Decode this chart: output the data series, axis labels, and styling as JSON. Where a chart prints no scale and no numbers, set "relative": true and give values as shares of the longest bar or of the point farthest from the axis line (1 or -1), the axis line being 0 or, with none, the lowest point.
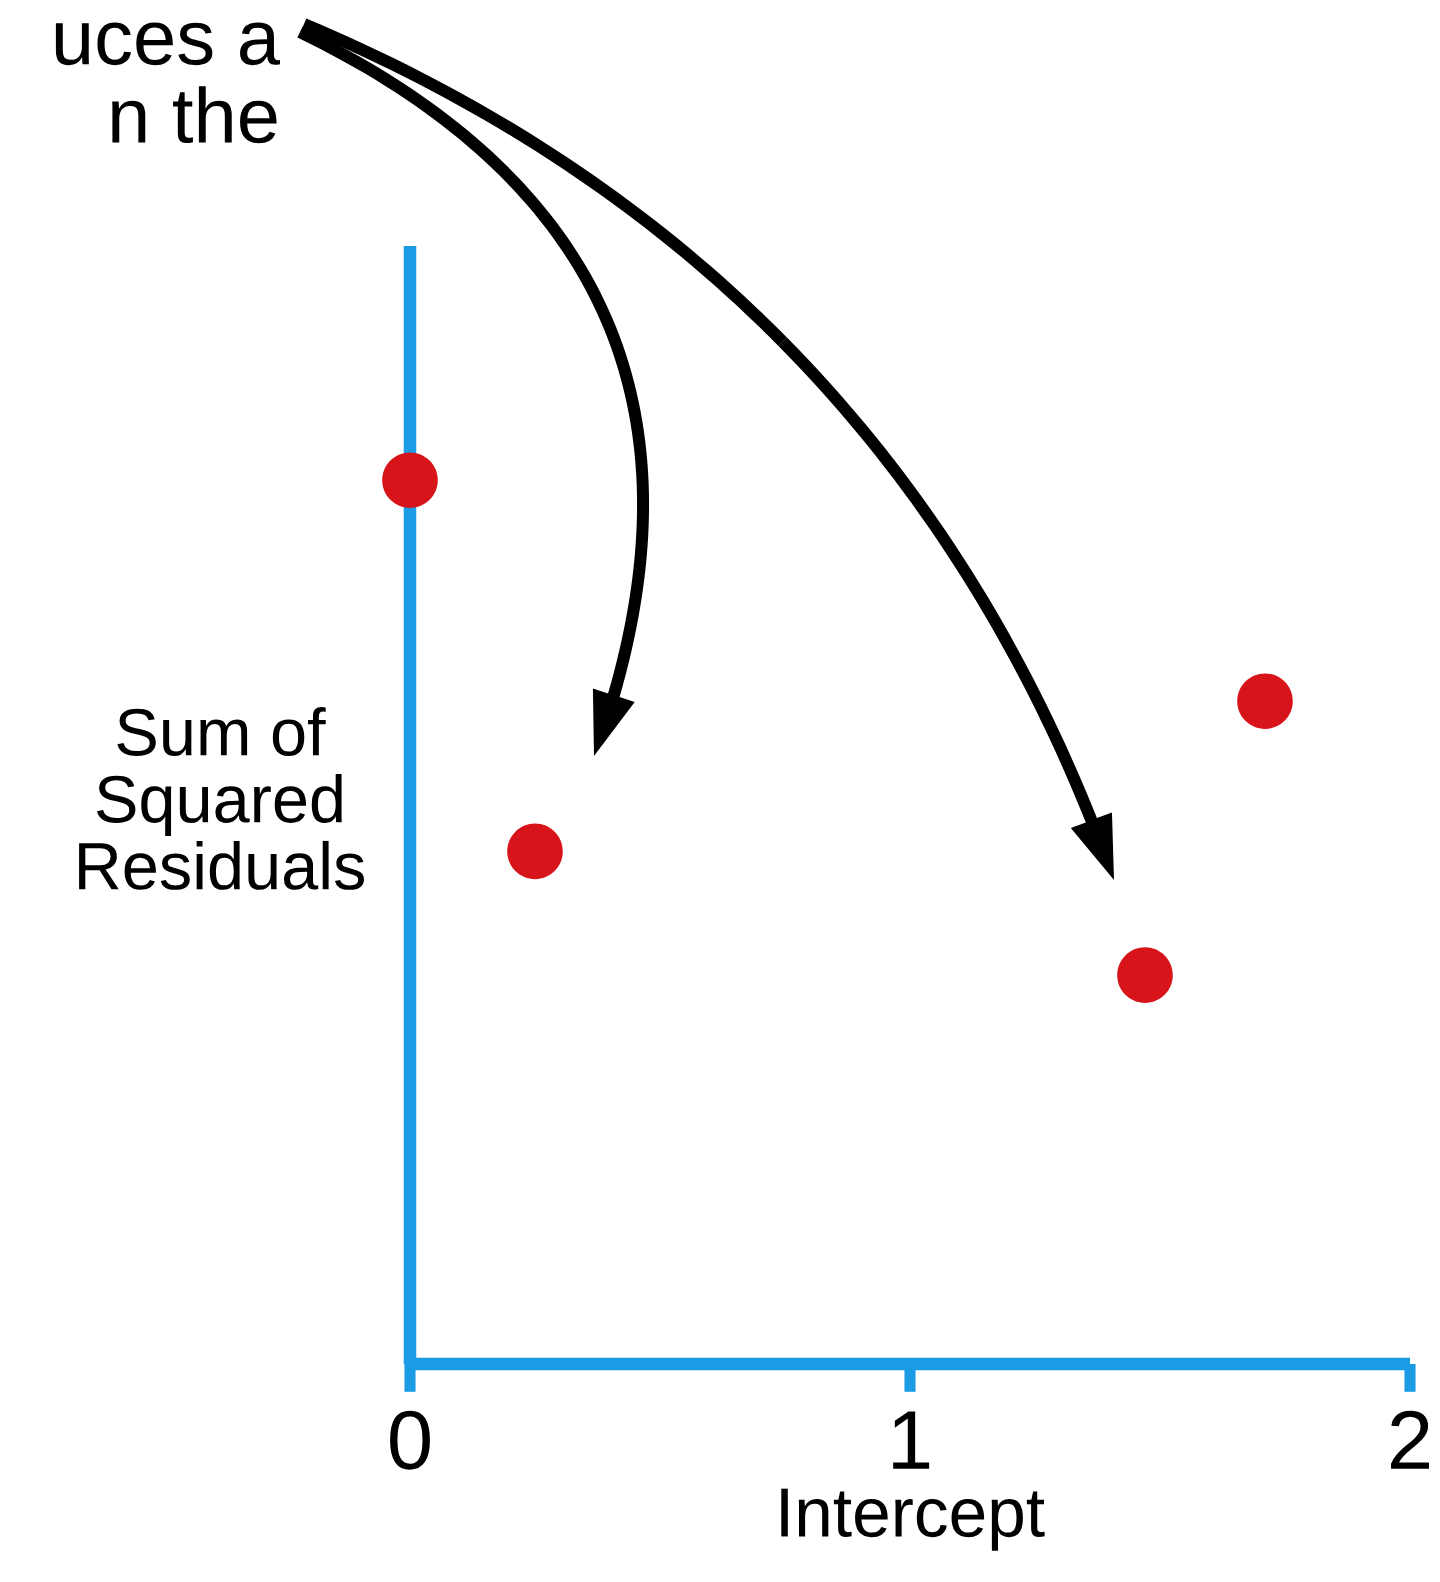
{
  "chart_data": {
    "type": "scatter",
    "xlabel": "Intercept",
    "ylabel": "Sum of\nSquared\nResiduals",
    "x": [
      0,
      0.25,
      1.47,
      1.71
    ],
    "values": [
      1,
      0.58,
      0.44,
      0.75
    ],
    "color": "#d7141a",
    "relative": true,
    "xlim": [
      0,
      2
    ],
    "xticks": [
      0,
      1,
      2
    ],
    "tick_labels": "x",
    "marker": "circle",
    "annotations": [
      "uces a\nn the"
    ]
  }
}
